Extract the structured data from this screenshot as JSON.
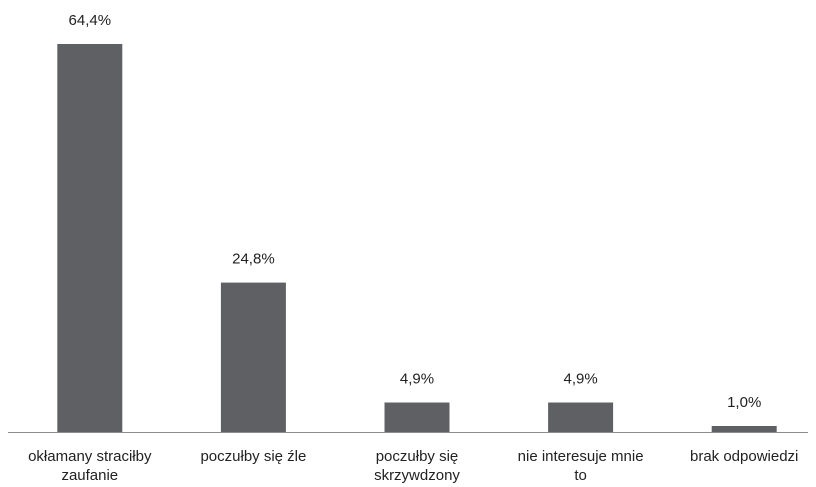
{
  "chart_data": {
    "type": "bar",
    "title": "",
    "xlabel": "",
    "ylabel": "",
    "categories": [
      [
        "okłamany straciłby",
        "zaufanie"
      ],
      [
        "poczułby się źle"
      ],
      [
        "poczułby się",
        "skrzywdzony"
      ],
      [
        "nie interesuje mnie",
        "to"
      ],
      [
        "brak odpowiedzi"
      ]
    ],
    "values": [
      64.4,
      24.8,
      4.9,
      4.9,
      1.0
    ],
    "value_labels": [
      "64,4%",
      "24,8%",
      "4,9%",
      "4,9%",
      "1,0%"
    ],
    "ylim": [
      0,
      64.4
    ],
    "grid": false,
    "legend": "none",
    "bar_color": "#5f6063"
  }
}
